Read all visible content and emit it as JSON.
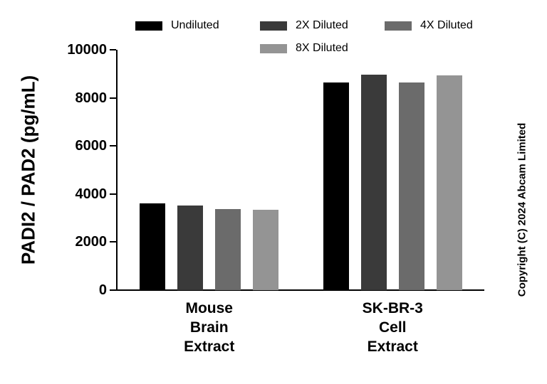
{
  "chart_data": {
    "type": "bar",
    "title": "",
    "ylabel": "PADI2 / PAD2 (pg/mL)",
    "xlabel": "",
    "ylim": [
      0,
      10000
    ],
    "yticks": [
      0,
      2000,
      4000,
      6000,
      8000,
      10000
    ],
    "grid": false,
    "legend_position": "top",
    "categories": [
      {
        "lines": [
          "Mouse",
          "Brain",
          "Extract"
        ]
      },
      {
        "lines": [
          "SK-BR-3",
          "Cell",
          "Extract"
        ]
      }
    ],
    "series": [
      {
        "name": "Undiluted",
        "color": "#000000",
        "values": [
          3620,
          8630
        ]
      },
      {
        "name": "2X Diluted",
        "color": "#3a3a3a",
        "values": [
          3510,
          8970
        ]
      },
      {
        "name": "4X Diluted",
        "color": "#6b6b6b",
        "values": [
          3370,
          8630
        ]
      },
      {
        "name": "8X Diluted",
        "color": "#949494",
        "values": [
          3330,
          8940
        ]
      }
    ]
  },
  "copyright": "Copyright (C) 2024 Abcam Limited"
}
